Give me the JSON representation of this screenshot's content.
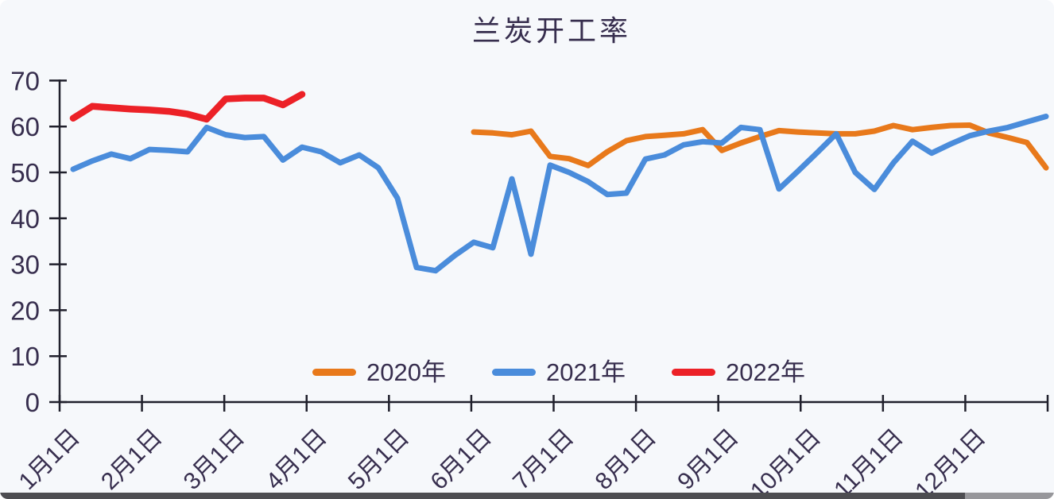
{
  "page": {
    "background_color": "#F6F8FB",
    "bottom_bar_dark_color": "#4D4D51",
    "bottom_bar_light_color": "#97979B"
  },
  "axis": {
    "line_color": "#20202C",
    "label_color": "#372E4E"
  },
  "chart_data": {
    "type": "line",
    "title": "兰炭开工率",
    "xlabel": "",
    "ylabel": "",
    "ylim": [
      0,
      70
    ],
    "y_ticks": [
      0,
      10,
      20,
      30,
      40,
      50,
      60,
      70
    ],
    "x_tick_labels": [
      "1月1日",
      "2月1日",
      "3月1日",
      "4月1日",
      "5月1日",
      "6月1日",
      "7月1日",
      "8月1日",
      "9月1日",
      "10月1日",
      "11月1日",
      "12月1日"
    ],
    "x_unit": "week-of-year (weekly observations)",
    "grid": false,
    "legend_position": "inside-bottom-center",
    "legend_entries": [
      "2020年",
      "2021年",
      "2022年"
    ],
    "series": [
      {
        "name": "2020年",
        "color": "#E8791B",
        "start_week": 22,
        "values": [
          58.8,
          58.6,
          58.2,
          59,
          53.5,
          53,
          51.5,
          54.5,
          56.9,
          57.8,
          58.1,
          58.4,
          59.3,
          54.8,
          56.4,
          57.8,
          59.1,
          58.8,
          58.6,
          58.4,
          58.4,
          59,
          60.2,
          59.3,
          59.8,
          60.2,
          60.3,
          58.6,
          57.6,
          56.5,
          51
        ]
      },
      {
        "name": "2021年",
        "color": "#4A8CDB",
        "start_week": 1,
        "values": [
          50.7,
          52.5,
          54,
          53,
          55,
          54.8,
          54.5,
          59.8,
          58.2,
          57.6,
          57.8,
          52.7,
          55.5,
          54.5,
          52.1,
          53.8,
          51,
          44.4,
          29.3,
          28.6,
          31.9,
          34.8,
          33.6,
          48.6,
          32.2,
          51.6,
          50,
          48,
          45.2,
          45.5,
          52.9,
          53.8,
          56,
          56.7,
          56.4,
          59.8,
          59.3,
          46.4,
          50.3,
          54.3,
          58.4,
          50,
          46.3,
          52.1,
          56.8,
          54.2,
          56.2,
          58,
          59,
          59.8,
          61,
          62.2
        ]
      },
      {
        "name": "2022年",
        "color": "#EC2127",
        "start_week": 1,
        "values": [
          61.8,
          64.4,
          64.1,
          63.8,
          63.6,
          63.3,
          62.7,
          61.6,
          66,
          66.2,
          66.2,
          64.7,
          67
        ]
      }
    ]
  }
}
